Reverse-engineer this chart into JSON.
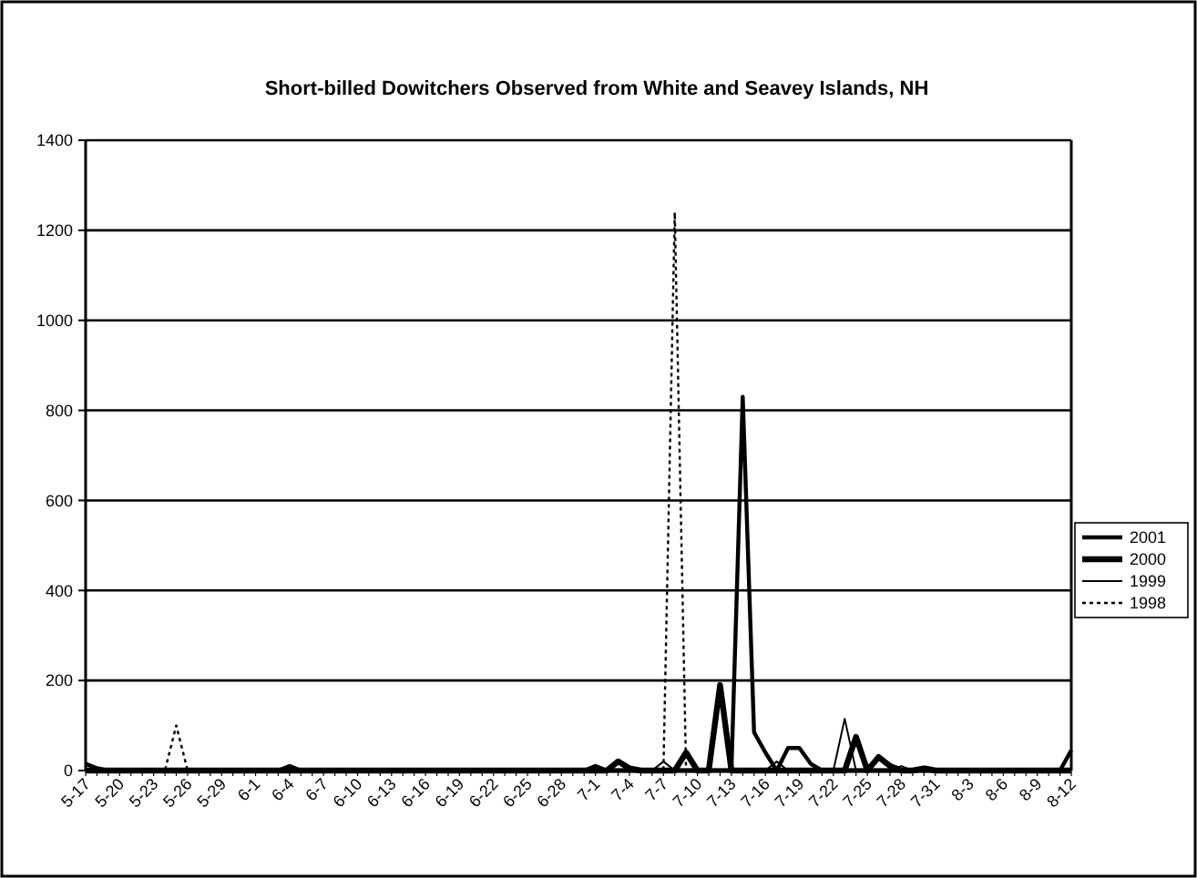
{
  "chart_data": {
    "type": "line",
    "title": "Short-billed Dowitchers Observed from White and Seavey Islands, NH",
    "categories": [
      "5-17",
      null,
      null,
      "5-20",
      null,
      null,
      "5-23",
      null,
      null,
      "5-26",
      null,
      null,
      "5-29",
      null,
      null,
      "6-1",
      null,
      null,
      "6-4",
      null,
      null,
      "6-7",
      null,
      null,
      "6-10",
      null,
      null,
      "6-13",
      null,
      null,
      "6-16",
      null,
      null,
      "6-19",
      null,
      null,
      "6-22",
      null,
      null,
      "6-25",
      null,
      null,
      "6-28",
      null,
      null,
      "7-1",
      null,
      null,
      "7-4",
      null,
      null,
      "7-7",
      null,
      null,
      "7-10",
      null,
      null,
      "7-13",
      null,
      null,
      "7-16",
      null,
      null,
      "7-19",
      null,
      null,
      "7-22",
      null,
      null,
      "7-25",
      null,
      null,
      "7-28",
      null,
      null,
      "7-31",
      null,
      null,
      "8-3",
      null,
      null,
      "8-6",
      null,
      null,
      "8-9",
      null,
      null,
      "8-12"
    ],
    "series": [
      {
        "name": "2001",
        "color": "#000000",
        "line_style": "solid",
        "values": [
          15,
          5,
          0,
          0,
          0,
          0,
          0,
          0,
          0,
          0,
          0,
          0,
          0,
          0,
          0,
          0,
          0,
          0,
          10,
          0,
          0,
          0,
          0,
          0,
          0,
          0,
          0,
          0,
          0,
          0,
          0,
          0,
          0,
          0,
          0,
          0,
          0,
          0,
          0,
          0,
          0,
          0,
          0,
          0,
          0,
          10,
          0,
          0,
          0,
          0,
          0,
          0,
          0,
          0,
          0,
          0,
          0,
          0,
          830,
          85,
          40,
          0,
          50,
          50,
          15,
          0,
          0,
          0,
          0,
          0,
          0,
          0,
          0,
          0,
          0,
          0,
          0,
          0,
          0,
          0,
          0,
          0,
          0,
          0,
          0,
          0,
          0,
          45
        ]
      },
      {
        "name": "2000",
        "color": "#000000",
        "line_style": "solid",
        "values": [
          0,
          0,
          0,
          0,
          0,
          0,
          0,
          0,
          0,
          0,
          0,
          0,
          0,
          0,
          0,
          0,
          0,
          0,
          0,
          0,
          0,
          0,
          0,
          0,
          0,
          0,
          0,
          0,
          0,
          0,
          0,
          0,
          0,
          0,
          0,
          0,
          0,
          0,
          0,
          0,
          0,
          0,
          0,
          0,
          0,
          0,
          0,
          20,
          5,
          0,
          0,
          0,
          0,
          40,
          0,
          0,
          190,
          0,
          0,
          0,
          0,
          0,
          0,
          0,
          0,
          0,
          0,
          0,
          75,
          0,
          30,
          10,
          0,
          0,
          5,
          0,
          0,
          0,
          0,
          0,
          0,
          0,
          0,
          0,
          0,
          0,
          0,
          0
        ]
      },
      {
        "name": "1999",
        "color": "#000000",
        "line_style": "solid",
        "values": [
          0,
          0,
          0,
          0,
          0,
          0,
          0,
          0,
          0,
          0,
          0,
          0,
          0,
          0,
          0,
          0,
          0,
          0,
          0,
          0,
          0,
          0,
          0,
          0,
          0,
          0,
          0,
          0,
          0,
          0,
          0,
          0,
          0,
          0,
          0,
          0,
          0,
          0,
          0,
          0,
          0,
          0,
          0,
          0,
          0,
          0,
          0,
          0,
          0,
          0,
          0,
          20,
          0,
          0,
          0,
          0,
          0,
          0,
          0,
          0,
          0,
          20,
          0,
          0,
          0,
          0,
          0,
          115,
          0,
          0,
          0,
          0,
          10,
          0,
          0,
          0,
          0,
          0,
          0,
          0,
          0,
          0,
          0,
          0,
          0,
          0,
          0,
          0
        ]
      },
      {
        "name": "1998",
        "color": "#000000",
        "line_style": "dotted",
        "values": [
          0,
          0,
          0,
          0,
          0,
          0,
          0,
          0,
          100,
          0,
          0,
          0,
          0,
          0,
          0,
          0,
          0,
          0,
          0,
          0,
          0,
          0,
          0,
          0,
          0,
          0,
          0,
          0,
          0,
          0,
          0,
          0,
          0,
          0,
          0,
          0,
          0,
          0,
          0,
          0,
          0,
          0,
          0,
          0,
          0,
          0,
          0,
          0,
          0,
          0,
          0,
          0,
          1240,
          0,
          0,
          0,
          0,
          0,
          0,
          0,
          0,
          0,
          0,
          0,
          0,
          0,
          0,
          0,
          0,
          0,
          0,
          0,
          0,
          0,
          0,
          0,
          0,
          0,
          0,
          0,
          0,
          0,
          0,
          0,
          0,
          0,
          0,
          0
        ]
      }
    ],
    "ylim": [
      0,
      1400
    ],
    "yticks": [
      0,
      200,
      400,
      600,
      800,
      1000,
      1200,
      1400
    ],
    "grid": "y",
    "legend": "right"
  }
}
